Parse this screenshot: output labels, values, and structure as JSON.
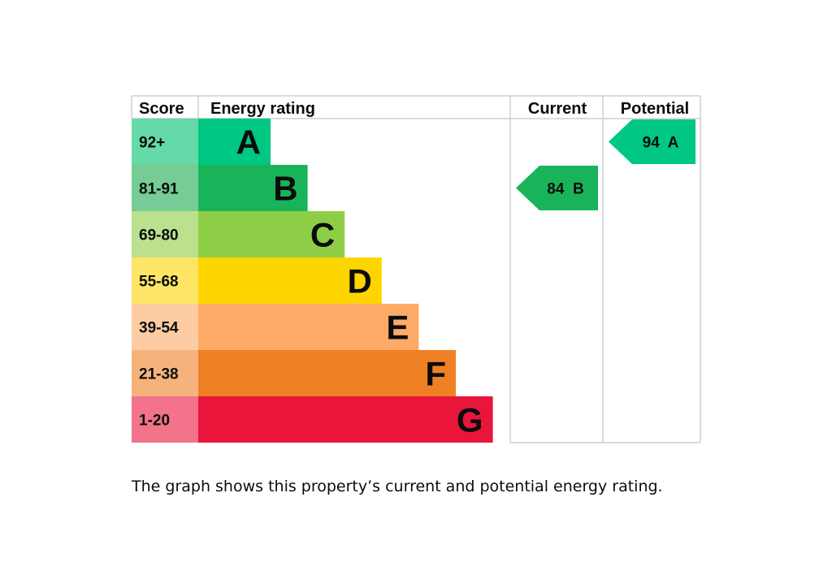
{
  "chart_data": {
    "type": "bar",
    "headers": {
      "score": "Score",
      "energy_rating": "Energy rating",
      "current": "Current",
      "potential": "Potential"
    },
    "bands": [
      {
        "letter": "A",
        "score": "92+",
        "color": "#00c781",
        "score_bg": "#66d9a9"
      },
      {
        "letter": "B",
        "score": "81-91",
        "color": "#19b459",
        "score_bg": "#75cc95"
      },
      {
        "letter": "C",
        "score": "69-80",
        "color": "#8dce46",
        "score_bg": "#bbe08e"
      },
      {
        "letter": "D",
        "score": "55-68",
        "color": "#ffd500",
        "score_bg": "#ffe566"
      },
      {
        "letter": "E",
        "score": "39-54",
        "color": "#fcaa65",
        "score_bg": "#fdcca3"
      },
      {
        "letter": "F",
        "score": "21-38",
        "color": "#ef8023",
        "score_bg": "#f5b37b"
      },
      {
        "letter": "G",
        "score": "1-20",
        "color": "#e9153b",
        "score_bg": "#f2738a"
      }
    ],
    "current": {
      "value": 84,
      "band": "B",
      "label": "84  B",
      "color": "#19b459"
    },
    "potential": {
      "value": 94,
      "band": "A",
      "label": "94  A",
      "color": "#00c781"
    }
  },
  "caption": "The graph shows this property’s current and potential energy rating."
}
